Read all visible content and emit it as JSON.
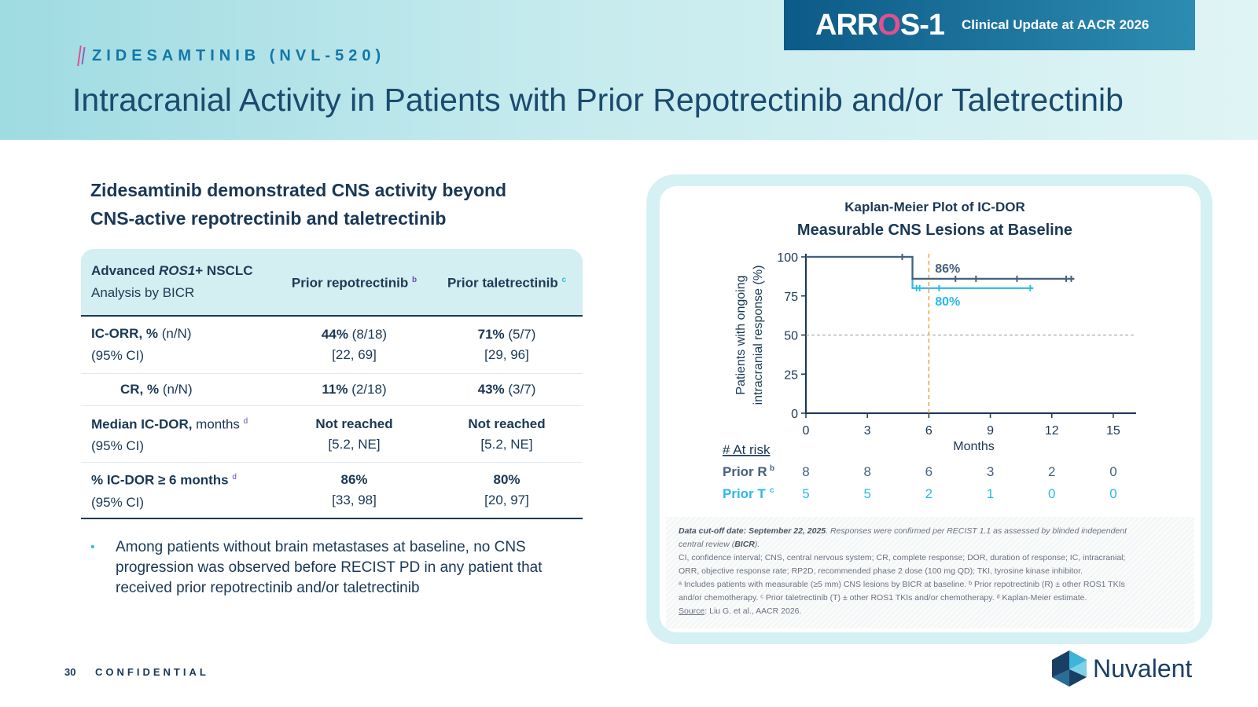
{
  "header": {
    "badge_logo_a": "ARR",
    "badge_logo_b": "O",
    "badge_logo_c": "S-1",
    "badge_text": "Clinical Update at AACR 2026",
    "kicker": "ZIDESAMTINIB (NVL-520)",
    "title": "Intracranial Activity in Patients with Prior Repotrectinib and/or Taletrectinib"
  },
  "left": {
    "subhead_line1": "Zidesamtinib demonstrated CNS activity beyond",
    "subhead_line2": "CNS-active repotrectinib and taletrectinib",
    "bullet": "Among patients without brain metastases at baseline, no CNS progression was observed before RECIST PD in any patient that received prior repotrectinib and/or taletrectinib"
  },
  "table": {
    "head": {
      "c1_line1_a": "Advanced ",
      "c1_line1_b": "ROS1",
      "c1_line1_c": "+ NSCLC",
      "c1_line2": "Analysis by BICR",
      "c2": "Prior repotrectinib",
      "c2_sup": "b",
      "c3": "Prior taletrectinib",
      "c3_sup": "c"
    },
    "rows": [
      {
        "label_a": "IC-ORR, %",
        "label_b": " (n/N)",
        "label_2": "(95% CI)",
        "c2_a": "44%",
        "c2_b": " (8/18)",
        "c2_2": "[22, 69]",
        "c3_a": "71%",
        "c3_b": " (5/7)",
        "c3_2": "[29, 96]"
      },
      {
        "label_a": "CR, %",
        "label_b": " (n/N)",
        "c2_a": "11%",
        "c2_b": " (2/18)",
        "c3_a": "43%",
        "c3_b": " (3/7)"
      },
      {
        "label_a": "Median IC-DOR,",
        "label_b": " months",
        "sup": "d",
        "label_2": "(95% CI)",
        "c2_a": "Not reached",
        "c2_2": "[5.2, NE]",
        "c3_a": "Not reached",
        "c3_2": "[5.2, NE]"
      },
      {
        "label_a": "% IC-DOR ≥ 6 months",
        "sup": "d",
        "label_2": "(95% CI)",
        "c2_a": "86%",
        "c2_2": "[33, 98]",
        "c3_a": "80%",
        "c3_2": "[20, 97]"
      }
    ]
  },
  "chart_data": {
    "type": "line",
    "subtitle": "Kaplan-Meier Plot of IC-DOR",
    "title": "Measurable CNS Lesions at Baseline",
    "xlabel": "Months",
    "ylabel_line1": "Patients with ongoing",
    "ylabel_line2": "intracranial response (%)",
    "xlim": [
      0,
      16
    ],
    "ylim": [
      0,
      100
    ],
    "x_ticks": [
      0,
      3,
      6,
      9,
      12,
      15
    ],
    "y_ticks": [
      0,
      25,
      50,
      75,
      100
    ],
    "reference_y": 50,
    "reference_x": 6,
    "series": [
      {
        "name": "Prior R",
        "sup": "b",
        "color": "#46617f",
        "steps": [
          [
            0,
            100
          ],
          [
            5.2,
            100
          ],
          [
            5.2,
            86
          ],
          [
            13.1,
            86
          ]
        ],
        "censors": [
          [
            4.7,
            100
          ],
          [
            7.3,
            86
          ],
          [
            8.3,
            86
          ],
          [
            10.3,
            86
          ],
          [
            12.7,
            86
          ],
          [
            12.95,
            86
          ]
        ],
        "label": "86%"
      },
      {
        "name": "Prior T",
        "sup": "c",
        "color": "#2bb9e8",
        "steps": [
          [
            0,
            100
          ],
          [
            5.2,
            100
          ],
          [
            5.2,
            80
          ],
          [
            11.1,
            80
          ]
        ],
        "censors": [
          [
            5.4,
            80
          ],
          [
            5.55,
            80
          ],
          [
            6.5,
            80
          ],
          [
            10.95,
            80
          ]
        ],
        "label": "80%"
      }
    ],
    "at_risk_label": "# At risk",
    "at_risk": [
      {
        "name": "Prior R",
        "values": [
          8,
          8,
          6,
          3,
          2,
          0
        ]
      },
      {
        "name": "Prior T",
        "values": [
          5,
          5,
          2,
          1,
          0,
          0
        ]
      }
    ]
  },
  "notes": {
    "l1_b": "Data cut-off date: September 22, 2025",
    "l1_i": ". Responses were confirmed per RECIST 1.1 as assessed by blinded independent",
    "l2_i": "central review (",
    "l2_b": "BICR",
    "l2_e": ").",
    "l3": "CI, confidence interval; CNS, central nervous system; CR, complete response; DOR, duration of response; IC, intracranial;",
    "l4": "ORR, objective response rate; RP2D, recommended phase 2 dose (100 mg QD); TKI, tyrosine kinase inhibitor.",
    "l5": "ᵃ Includes patients with measurable (≥5 mm) CNS lesions by BICR at baseline. ᵇ Prior repotrectinib (R) ± other ROS1 TKIs",
    "l6": "and/or chemotherapy. ᶜ Prior taletrectinib (T) ± other ROS1 TKIs and/or chemotherapy. ᵈ Kaplan-Meier estimate.",
    "source_label": "Source",
    "source_text": ": Liu G. et al., AACR 2026."
  },
  "footer": {
    "page": "30",
    "confidential": "CONFIDENTIAL",
    "brand": "Nuvalent"
  }
}
